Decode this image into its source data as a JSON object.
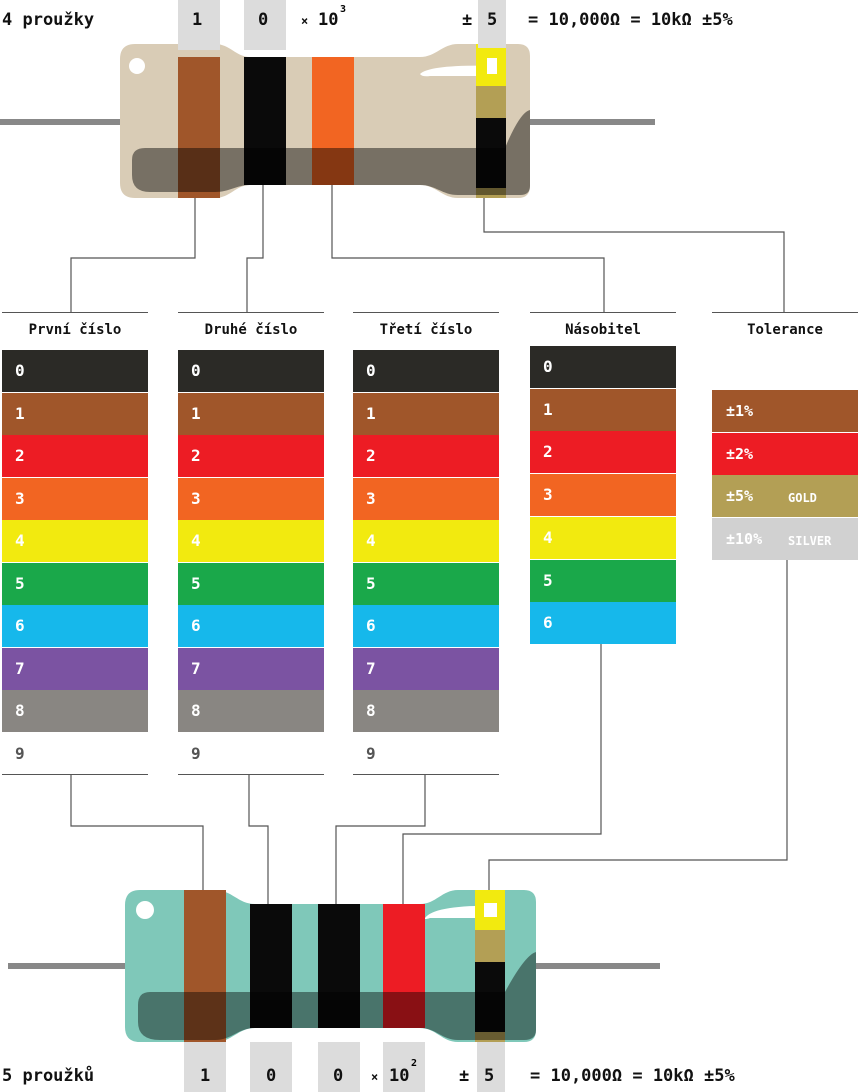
{
  "top": {
    "title": "4 proužky",
    "band_digits": [
      "1",
      "0"
    ],
    "multiplier_prefix": "×",
    "multiplier_base": "10",
    "multiplier_exp": "3",
    "tolerance_sign": "±",
    "tolerance_value": "5",
    "result": "= 10,000Ω = 10kΩ ±5%"
  },
  "bottom": {
    "title": "5 proužků",
    "band_digits": [
      "1",
      "0",
      "0"
    ],
    "multiplier_prefix": "×",
    "multiplier_base": "10",
    "multiplier_exp": "2",
    "tolerance_sign": "±",
    "tolerance_value": "5",
    "result": "= 10,000Ω = 10kΩ ±5%"
  },
  "columns": {
    "first": "První číslo",
    "second": "Druhé číslo",
    "third": "Třetí číslo",
    "multiplier": "Násobitel",
    "tolerance": "Tolerance"
  },
  "digit_labels": [
    "0",
    "1",
    "2",
    "3",
    "4",
    "5",
    "6",
    "7",
    "8",
    "9"
  ],
  "multiplier_labels": [
    "0",
    "1",
    "2",
    "3",
    "4",
    "5",
    "6"
  ],
  "tolerance_rows": [
    {
      "value": "±1%",
      "name": ""
    },
    {
      "value": "±2%",
      "name": ""
    },
    {
      "value": "±5%",
      "name": "GOLD"
    },
    {
      "value": "±10%",
      "name": "SILVER"
    }
  ],
  "colors": {
    "black": "#2b2a26",
    "brown": "#a0562a",
    "red": "#ed1c24",
    "orange": "#f26522",
    "yellow": "#f2ea0f",
    "green": "#1aa84a",
    "blue": "#16b8eb",
    "violet": "#7b53a2",
    "gray": "#898682",
    "gold": "#b39f55",
    "silver": "#d1d1d1",
    "resistor_beige": "#d9ccb6",
    "resistor_teal": "#7fc8b9"
  }
}
